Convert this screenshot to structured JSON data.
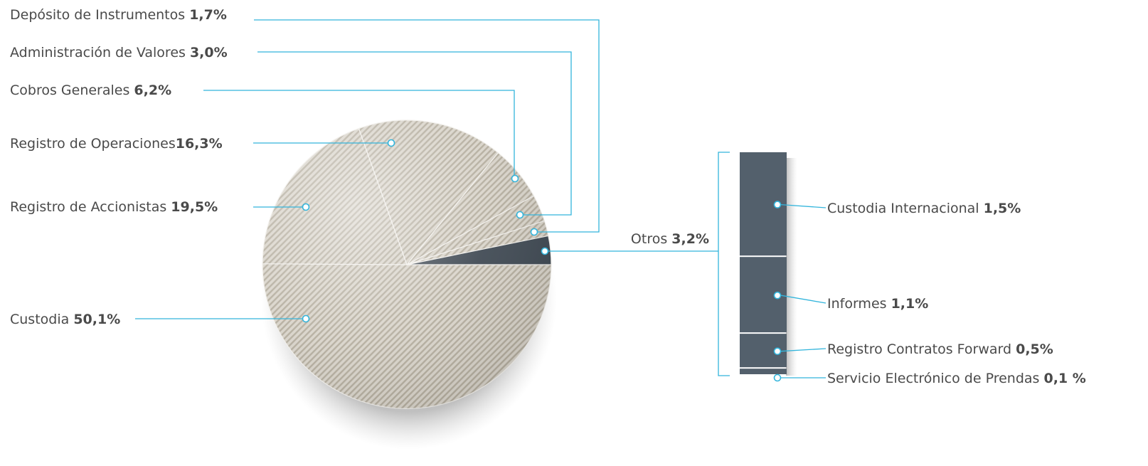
{
  "chart_data": [
    {
      "type": "pie",
      "slices": [
        {
          "name": "Custodia",
          "value": 50.1,
          "value_label": "50,1%"
        },
        {
          "name": "Registro de Accionistas",
          "value": 19.5,
          "value_label": "19,5%"
        },
        {
          "name": "Registro de Operaciones",
          "value": 16.3,
          "value_label": "16,3%"
        },
        {
          "name": "Cobros Generales",
          "value": 6.2,
          "value_label": "6,2%"
        },
        {
          "name": "Administración de Valores",
          "value": 3.0,
          "value_label": "3,0%"
        },
        {
          "name": "Depósito de Instrumentos",
          "value": 1.7,
          "value_label": "1,7%"
        },
        {
          "name": "Otros",
          "value": 3.2,
          "value_label": "3,2%"
        }
      ]
    },
    {
      "type": "bar",
      "stacked": true,
      "parent_slice": "Otros",
      "segments": [
        {
          "name": "Custodia Internacional",
          "value": 1.5,
          "value_label": "1,5%"
        },
        {
          "name": "Informes",
          "value": 1.1,
          "value_label": "1,1%"
        },
        {
          "name": "Registro Contratos Forward",
          "value": 0.5,
          "value_label": "0,5%"
        },
        {
          "name": "Servicio Electrónico de Prendas",
          "value": 0.1,
          "value_label": "0,1 %"
        }
      ]
    }
  ],
  "colors": {
    "pie_light": "#d5d0c6",
    "pie_stripe": "#b5ae9f",
    "pie_dark": "#3c4650",
    "bar": "#53606c",
    "leader": "#33b5dc",
    "text": "#4a4a4a"
  }
}
